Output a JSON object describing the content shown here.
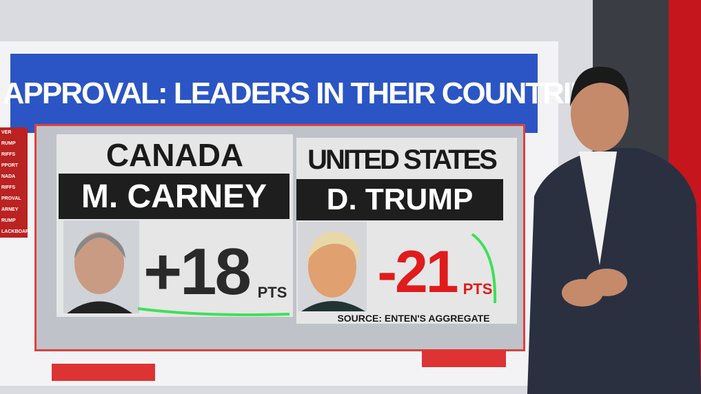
{
  "header": {
    "title": "NET APPROVAL: LEADERS IN THEIR COUNTRIES"
  },
  "panels": [
    {
      "country": "CANADA",
      "leader": "M. CARNEY",
      "value": "+18",
      "unit": "PTS"
    },
    {
      "country": "UNITED STATES",
      "leader": "D. TRUMP",
      "value": "-21",
      "unit": "PTS"
    }
  ],
  "source": "SOURCE: ENTEN'S AGGREGATE",
  "sidebar": [
    "VER",
    "RUMP",
    "RIFFS",
    "PPORT",
    "NADA",
    "RIFFS",
    "PROVAL",
    "ARNEY",
    "RUMP",
    "LACKBOARD"
  ]
}
